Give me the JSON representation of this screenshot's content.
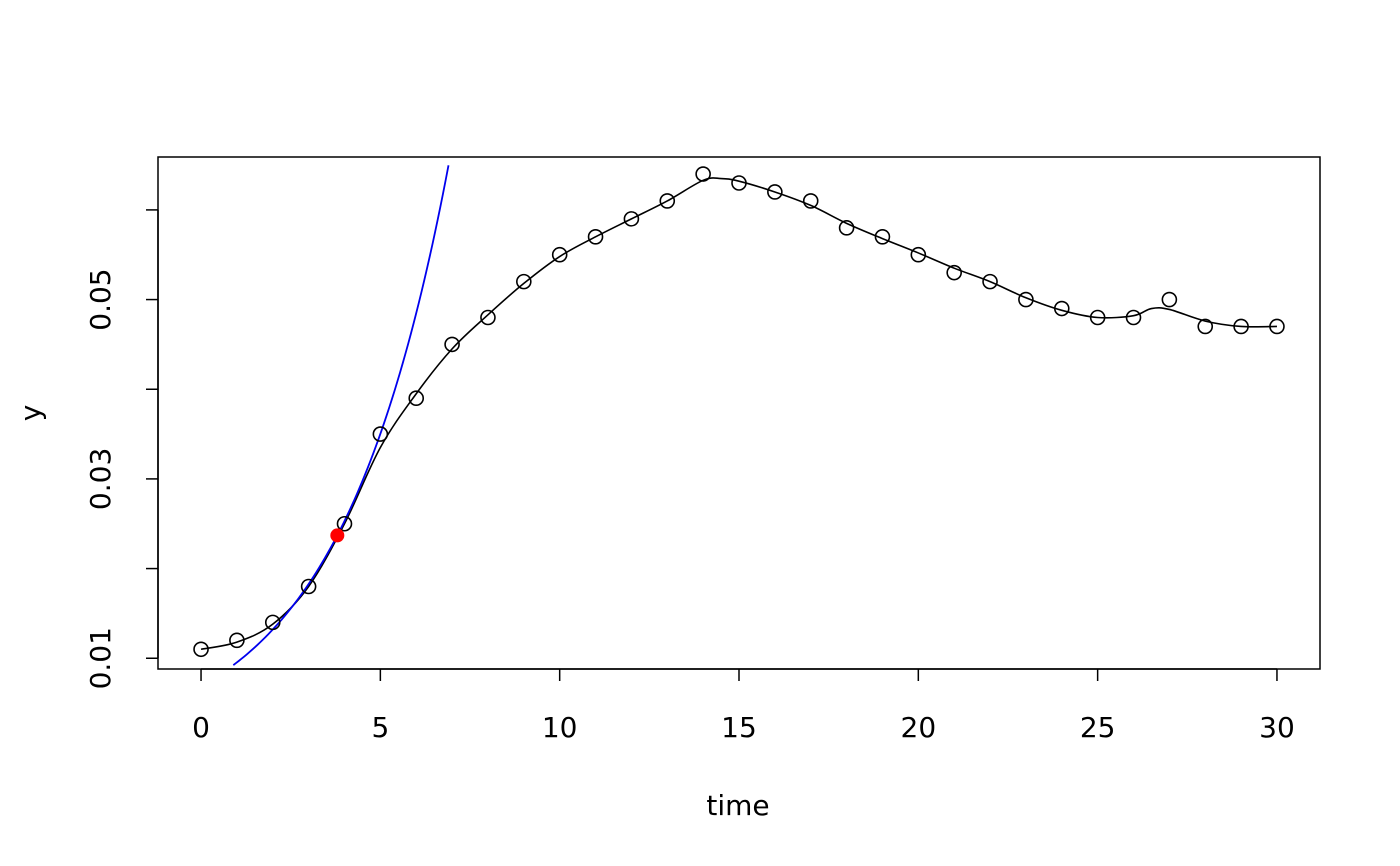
{
  "chart_data": {
    "type": "scatter",
    "title": "",
    "xlabel": "time",
    "ylabel": "y",
    "xlim": [
      -1.2,
      31.2
    ],
    "ylim": [
      0.0088,
      0.0659
    ],
    "x_ticks": [
      0,
      5,
      10,
      15,
      20,
      25,
      30
    ],
    "x_tick_labels": [
      "0",
      "5",
      "10",
      "15",
      "20",
      "25",
      "30"
    ],
    "y_ticks": [
      0.01,
      0.02,
      0.03,
      0.04,
      0.05,
      0.06
    ],
    "y_tick_labels": [
      "0.01",
      "",
      "0.03",
      "",
      "0.05",
      ""
    ],
    "grid": false,
    "series": [
      {
        "style": "points-open-circle",
        "color": "#000000",
        "x": [
          0,
          1,
          2,
          3,
          4,
          5,
          6,
          7,
          8,
          9,
          10,
          11,
          12,
          13,
          14,
          15,
          16,
          17,
          18,
          19,
          20,
          21,
          22,
          23,
          24,
          25,
          26,
          27,
          28,
          29,
          30
        ],
        "y": [
          0.011,
          0.012,
          0.014,
          0.018,
          0.025,
          0.035,
          0.039,
          0.045,
          0.048,
          0.052,
          0.055,
          0.057,
          0.059,
          0.061,
          0.064,
          0.063,
          0.062,
          0.061,
          0.058,
          0.057,
          0.055,
          0.053,
          0.052,
          0.05,
          0.049,
          0.048,
          0.048,
          0.05,
          0.047,
          0.047,
          0.047
        ]
      },
      {
        "style": "smooth-line",
        "color": "#000000",
        "x": [
          0,
          1,
          2,
          3,
          4,
          5,
          6,
          7,
          8,
          9,
          10,
          11,
          12,
          13,
          14,
          14.5,
          15,
          16,
          17,
          18,
          19,
          20,
          21,
          22,
          23,
          24,
          25,
          26,
          26.5,
          27,
          28,
          29,
          30
        ],
        "y": [
          0.011,
          0.0118,
          0.0138,
          0.018,
          0.025,
          0.0335,
          0.0395,
          0.0445,
          0.0483,
          0.0518,
          0.0548,
          0.057,
          0.059,
          0.061,
          0.0633,
          0.0635,
          0.0632,
          0.062,
          0.0605,
          0.0585,
          0.0568,
          0.0552,
          0.0535,
          0.052,
          0.0502,
          0.0488,
          0.048,
          0.0482,
          0.049,
          0.0489,
          0.0476,
          0.047,
          0.047
        ]
      },
      {
        "style": "exponential-fit-line",
        "color": "#0000ee",
        "y0": 0.00689,
        "rate": 0.3252,
        "x_range": [
          0.9,
          6.9
        ]
      },
      {
        "style": "marked-point",
        "color": "#ff0000",
        "x": [
          3.8
        ],
        "y": [
          0.0237
        ]
      }
    ]
  }
}
